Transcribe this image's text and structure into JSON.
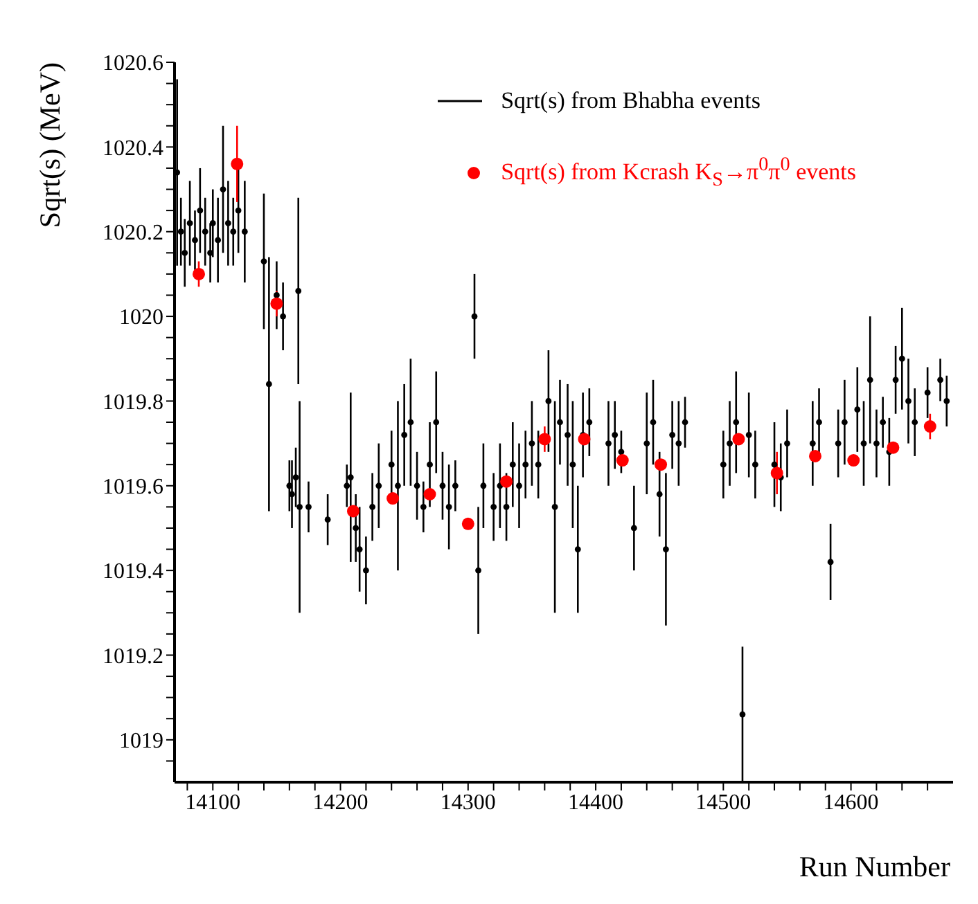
{
  "chart_data": {
    "type": "scatter",
    "xlabel": "Run Number",
    "ylabel": "Sqrt(s) (MeV)",
    "xlim": [
      14070,
      14680
    ],
    "ylim": [
      1018.9,
      1020.6
    ],
    "xticks": [
      {
        "value": 14080,
        "label": null
      },
      14100,
      {
        "value": 14120,
        "label": null
      },
      {
        "value": 14140,
        "label": null
      },
      {
        "value": 14160,
        "label": null
      },
      {
        "value": 14180,
        "label": null
      },
      14200,
      {
        "value": 14220,
        "label": null
      },
      {
        "value": 14240,
        "label": null
      },
      {
        "value": 14260,
        "label": null
      },
      {
        "value": 14280,
        "label": null
      },
      14300,
      {
        "value": 14320,
        "label": null
      },
      {
        "value": 14340,
        "label": null
      },
      {
        "value": 14360,
        "label": null
      },
      {
        "value": 14380,
        "label": null
      },
      14400,
      {
        "value": 14420,
        "label": null
      },
      {
        "value": 14440,
        "label": null
      },
      {
        "value": 14460,
        "label": null
      },
      {
        "value": 14480,
        "label": null
      },
      14500,
      {
        "value": 14520,
        "label": null
      },
      {
        "value": 14540,
        "label": null
      },
      {
        "value": 14560,
        "label": null
      },
      {
        "value": 14580,
        "label": null
      },
      14600,
      {
        "value": 14620,
        "label": null
      },
      {
        "value": 14640,
        "label": null
      },
      {
        "value": 14660,
        "label": null
      }
    ],
    "yticks": [
      {
        "value": 1018.95,
        "label": null
      },
      1019,
      {
        "value": 1019.05,
        "label": null
      },
      {
        "value": 1019.1,
        "label": null
      },
      {
        "value": 1019.15,
        "label": null
      },
      1019.2,
      {
        "value": 1019.25,
        "label": null
      },
      {
        "value": 1019.3,
        "label": null
      },
      {
        "value": 1019.35,
        "label": null
      },
      1019.4,
      {
        "value": 1019.45,
        "label": null
      },
      {
        "value": 1019.5,
        "label": null
      },
      {
        "value": 1019.55,
        "label": null
      },
      1019.6,
      {
        "value": 1019.65,
        "label": null
      },
      {
        "value": 1019.7,
        "label": null
      },
      {
        "value": 1019.75,
        "label": null
      },
      1019.8,
      {
        "value": 1019.85,
        "label": null
      },
      {
        "value": 1019.9,
        "label": null
      },
      {
        "value": 1019.95,
        "label": null
      },
      1020,
      {
        "value": 1020.05,
        "label": null
      },
      {
        "value": 1020.1,
        "label": null
      },
      {
        "value": 1020.15,
        "label": null
      },
      1020.2,
      {
        "value": 1020.25,
        "label": null
      },
      {
        "value": 1020.3,
        "label": null
      },
      {
        "value": 1020.35,
        "label": null
      },
      1020.4,
      {
        "value": 1020.45,
        "label": null
      },
      {
        "value": 1020.5,
        "label": null
      },
      {
        "value": 1020.55,
        "label": null
      },
      1020.6
    ],
    "legend": "top right",
    "series": [
      {
        "name": "Sqrt(s) from Bhabha events",
        "color": "#000000",
        "x": [
          14072,
          14075,
          14078,
          14082,
          14086,
          14090,
          14094,
          14098,
          14100,
          14104,
          14108,
          14112,
          14116,
          14120,
          14125,
          14140,
          14144,
          14150,
          14155,
          14160,
          14162,
          14165,
          14167,
          14168,
          14175,
          14190,
          14205,
          14208,
          14212,
          14215,
          14220,
          14225,
          14230,
          14240,
          14245,
          14250,
          14255,
          14260,
          14265,
          14270,
          14275,
          14280,
          14285,
          14290,
          14305,
          14308,
          14312,
          14320,
          14325,
          14330,
          14335,
          14340,
          14345,
          14350,
          14355,
          14363,
          14368,
          14372,
          14378,
          14382,
          14386,
          14390,
          14395,
          14410,
          14415,
          14420,
          14430,
          14440,
          14445,
          14450,
          14455,
          14460,
          14465,
          14470,
          14500,
          14505,
          14510,
          14515,
          14520,
          14525,
          14540,
          14545,
          14550,
          14570,
          14575,
          14584,
          14590,
          14595,
          14605,
          14610,
          14615,
          14620,
          14625,
          14630,
          14635,
          14640,
          14645,
          14650,
          14660,
          14670,
          14675
        ],
        "values": [
          1020.34,
          1020.2,
          1020.15,
          1020.22,
          1020.18,
          1020.25,
          1020.2,
          1020.15,
          1020.22,
          1020.18,
          1020.3,
          1020.22,
          1020.2,
          1020.25,
          1020.2,
          1020.13,
          1019.84,
          1020.05,
          1020.0,
          1019.6,
          1019.58,
          1019.62,
          1020.06,
          1019.55,
          1019.55,
          1019.52,
          1019.6,
          1019.62,
          1019.5,
          1019.45,
          1019.4,
          1019.55,
          1019.6,
          1019.65,
          1019.6,
          1019.72,
          1019.75,
          1019.6,
          1019.55,
          1019.65,
          1019.75,
          1019.6,
          1019.55,
          1019.6,
          1020.0,
          1019.4,
          1019.6,
          1019.55,
          1019.6,
          1019.55,
          1019.65,
          1019.6,
          1019.65,
          1019.7,
          1019.65,
          1019.8,
          1019.55,
          1019.75,
          1019.72,
          1019.65,
          1019.45,
          1019.72,
          1019.75,
          1019.7,
          1019.72,
          1019.68,
          1019.5,
          1019.7,
          1019.75,
          1019.58,
          1019.45,
          1019.72,
          1019.7,
          1019.75,
          1019.65,
          1019.7,
          1019.75,
          1019.06,
          1019.72,
          1019.65,
          1019.65,
          1019.62,
          1019.7,
          1019.7,
          1019.75,
          1019.42,
          1019.7,
          1019.75,
          1019.78,
          1019.7,
          1019.85,
          1019.7,
          1019.75,
          1019.68,
          1019.85,
          1019.9,
          1019.8,
          1019.75,
          1019.82,
          1019.85,
          1019.8
        ],
        "errors": [
          0.22,
          0.08,
          0.08,
          0.1,
          0.07,
          0.1,
          0.08,
          0.07,
          0.08,
          0.1,
          0.15,
          0.1,
          0.08,
          0.1,
          0.12,
          0.16,
          0.3,
          0.08,
          0.08,
          0.06,
          0.08,
          0.07,
          0.22,
          0.25,
          0.06,
          0.06,
          0.05,
          0.2,
          0.08,
          0.1,
          0.08,
          0.08,
          0.1,
          0.08,
          0.2,
          0.12,
          0.15,
          0.08,
          0.06,
          0.1,
          0.12,
          0.08,
          0.1,
          0.06,
          0.1,
          0.15,
          0.1,
          0.08,
          0.1,
          0.08,
          0.1,
          0.1,
          0.08,
          0.1,
          0.08,
          0.12,
          0.25,
          0.1,
          0.12,
          0.15,
          0.15,
          0.1,
          0.08,
          0.1,
          0.08,
          0.05,
          0.1,
          0.12,
          0.1,
          0.1,
          0.18,
          0.08,
          0.1,
          0.06,
          0.08,
          0.1,
          0.12,
          0.16,
          0.1,
          0.08,
          0.1,
          0.08,
          0.08,
          0.1,
          0.08,
          0.09,
          0.08,
          0.1,
          0.1,
          0.1,
          0.15,
          0.08,
          0.06,
          0.08,
          0.08,
          0.12,
          0.1,
          0.08,
          0.06,
          0.05,
          0.06
        ]
      },
      {
        "name": "Sqrt(s) from Kcrash K$_{S}$→π$^{0}$π$^{0}$ events",
        "color": "#ff0000",
        "marker": "circle",
        "x": [
          14089,
          14119,
          14150,
          14210,
          14241,
          14270,
          14300,
          14330,
          14360,
          14391,
          14421,
          14451,
          14512,
          14542,
          14572,
          14602,
          14633,
          14662
        ],
        "values": [
          1020.1,
          1020.36,
          1020.03,
          1019.54,
          1019.57,
          1019.58,
          1019.51,
          1019.61,
          1019.71,
          1019.71,
          1019.66,
          1019.65,
          1019.71,
          1019.63,
          1019.67,
          1019.66,
          1019.69,
          1019.74
        ],
        "errors": [
          0.03,
          0.09,
          0.03,
          null,
          null,
          null,
          null,
          null,
          0.03,
          null,
          null,
          null,
          null,
          0.05,
          null,
          null,
          null,
          0.03
        ]
      }
    ]
  }
}
